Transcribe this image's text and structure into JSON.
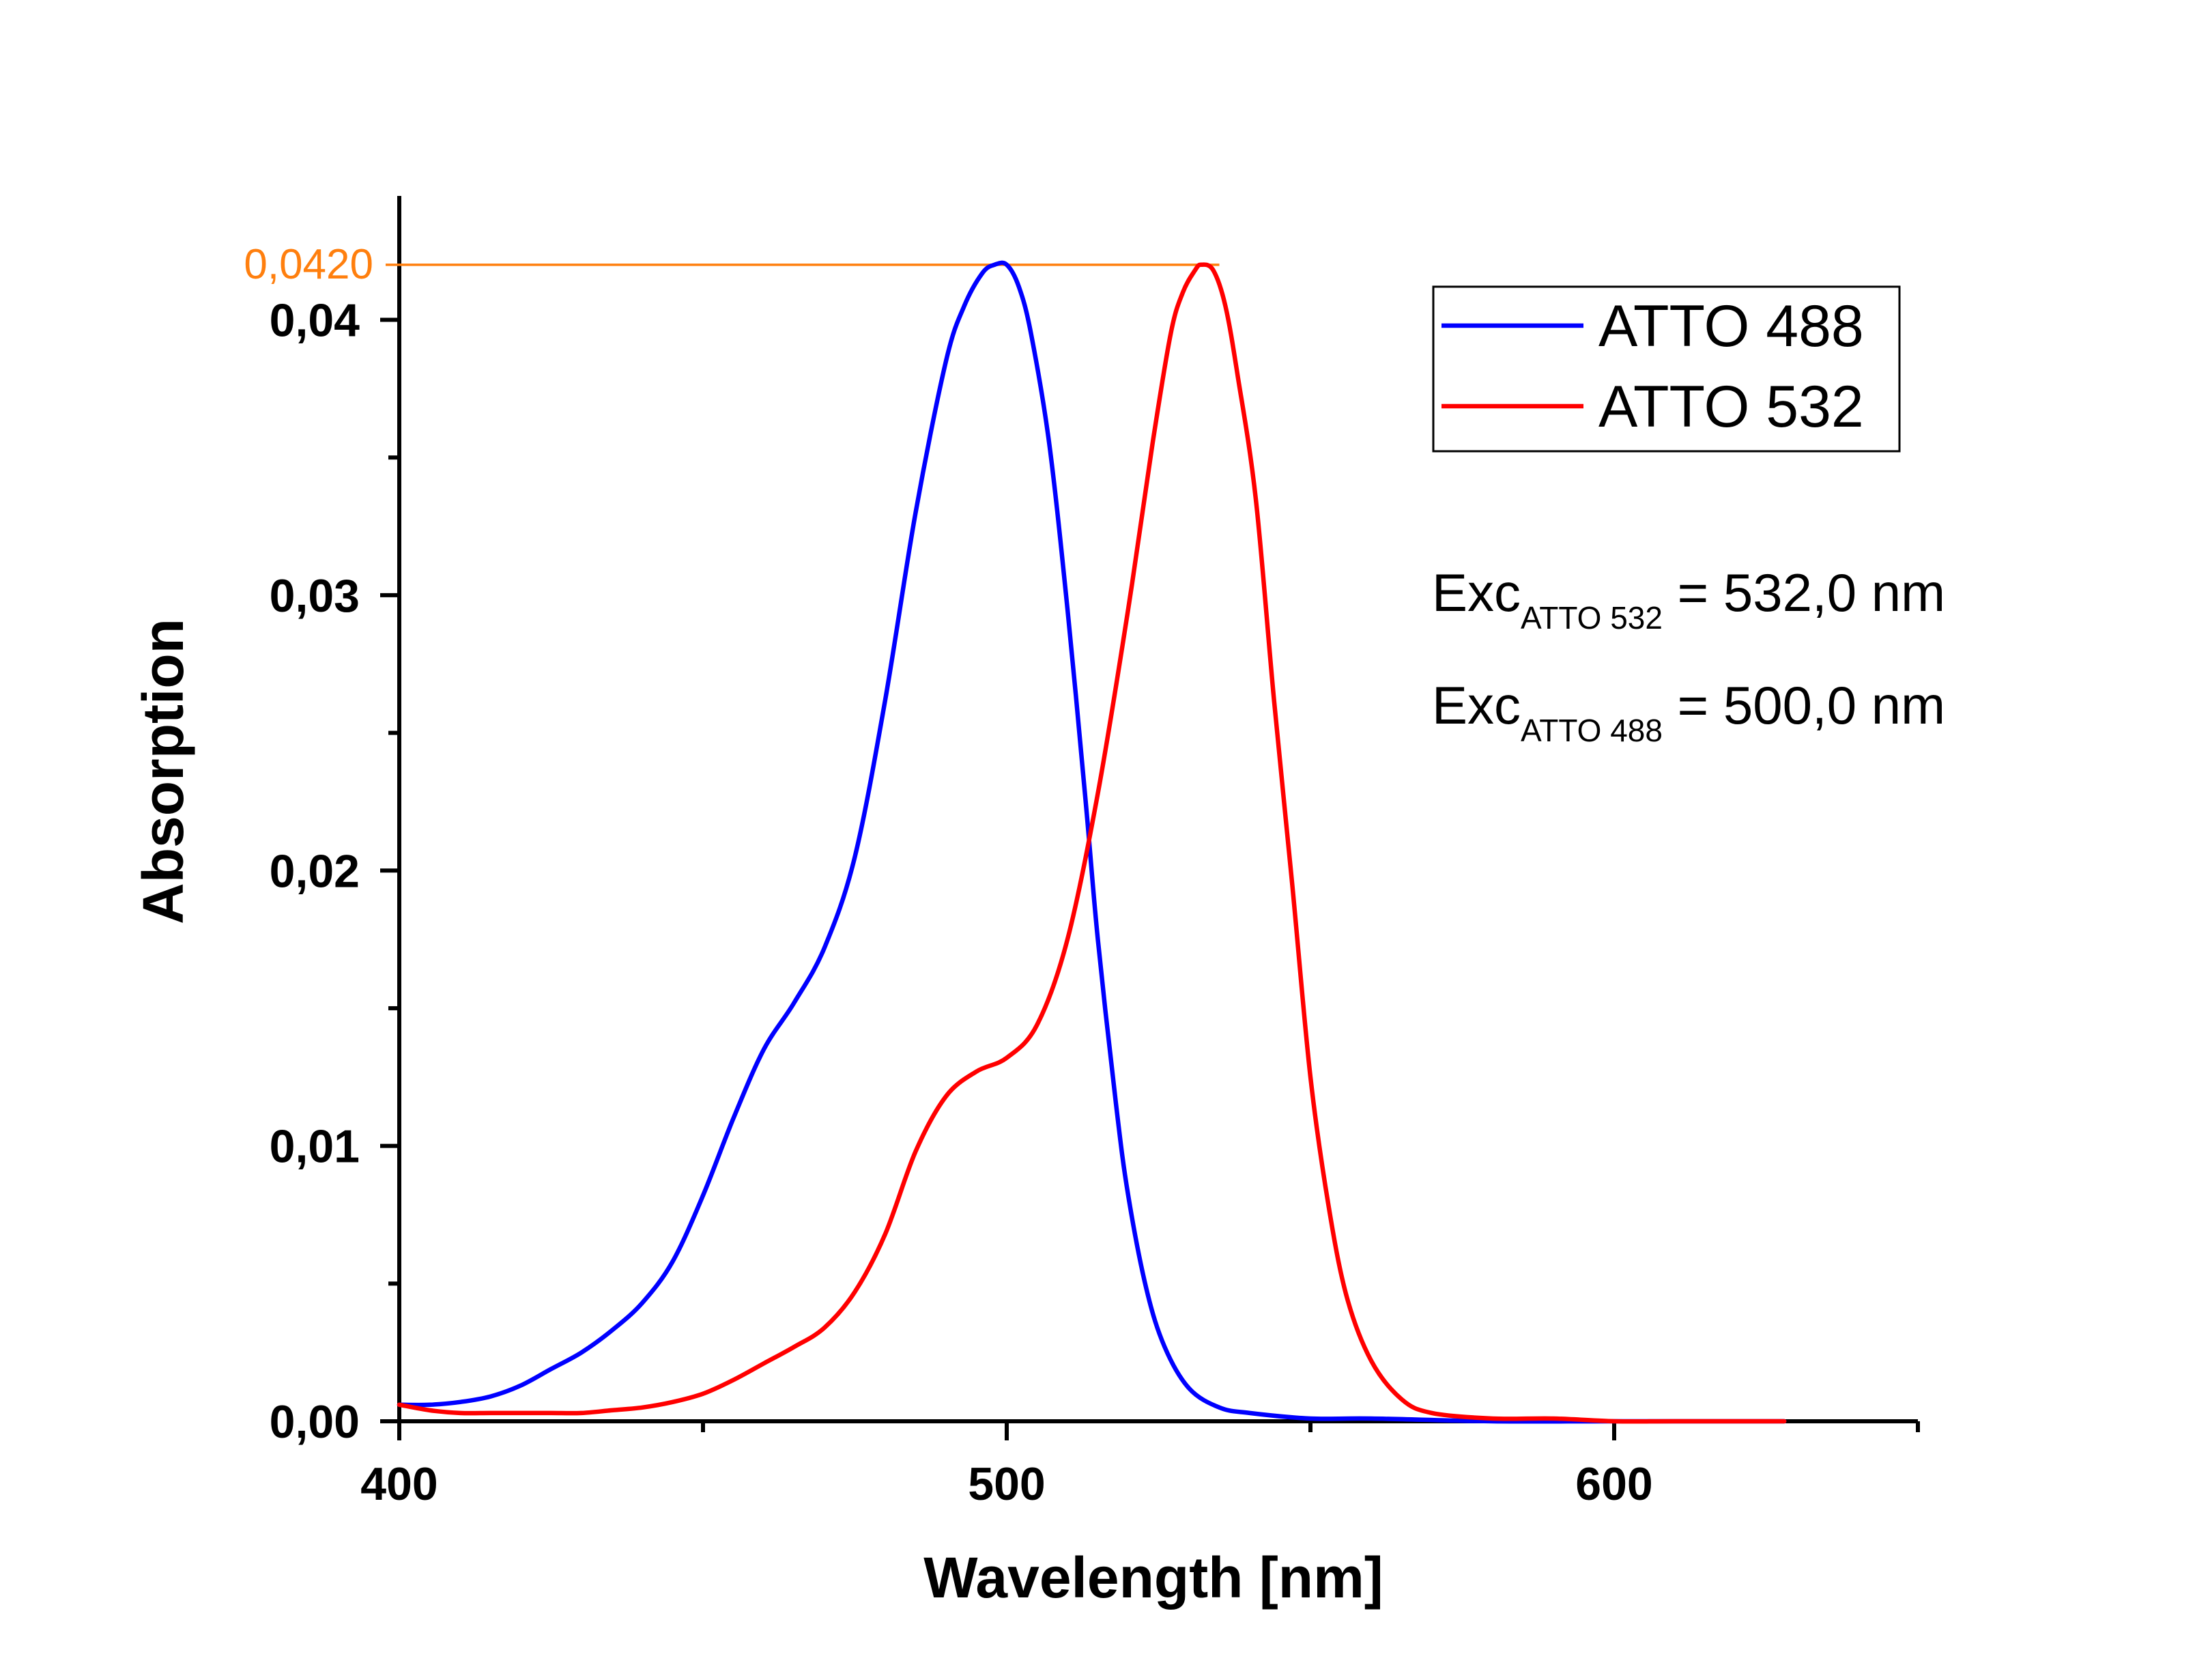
{
  "chart_data": {
    "type": "line",
    "title": "",
    "xlabel": "Wavelength [nm]",
    "ylabel": "Absorption",
    "xlim": [
      400,
      650
    ],
    "ylim": [
      0,
      0.0445
    ],
    "xticks": [
      400,
      500,
      600
    ],
    "xtick_labels": [
      "400",
      "500",
      "600"
    ],
    "x_minor_ticks": [
      450,
      550,
      650
    ],
    "yticks": [
      0,
      0.01,
      0.02,
      0.03,
      0.04
    ],
    "ytick_labels": [
      "0,00",
      "0,01",
      "0,02",
      "0,03",
      "0,04"
    ],
    "y_minor_ticks": [
      0.005,
      0.015,
      0.025,
      0.035
    ],
    "grid": false,
    "legend_position": "top-right",
    "series": [
      {
        "name": "ATTO 488",
        "color": "#0000ff",
        "x": [
          400,
          405,
          410,
          415,
          420,
          425,
          430,
          435,
          440,
          445,
          450,
          455,
          460,
          465,
          470,
          475,
          480,
          485,
          490,
          493,
          496,
          498,
          500,
          502,
          504,
          507,
          510,
          513,
          515,
          518,
          520,
          523,
          526,
          530,
          535,
          540,
          550,
          560,
          580,
          600,
          628
        ],
        "y": [
          0.0006,
          0.0006,
          0.0007,
          0.0009,
          0.0013,
          0.0019,
          0.0025,
          0.0033,
          0.0043,
          0.0058,
          0.0082,
          0.011,
          0.0135,
          0.0152,
          0.0172,
          0.0205,
          0.0262,
          0.033,
          0.0385,
          0.0405,
          0.0417,
          0.042,
          0.042,
          0.0412,
          0.0395,
          0.0355,
          0.0295,
          0.0225,
          0.0175,
          0.0115,
          0.0082,
          0.0048,
          0.0027,
          0.0012,
          0.0005,
          0.0003,
          0.0001,
          0.0001,
          0.0,
          0.0,
          0.0
        ]
      },
      {
        "name": "ATTO 532",
        "color": "#ff0000",
        "x": [
          400,
          405,
          410,
          415,
          420,
          425,
          430,
          435,
          440,
          445,
          450,
          455,
          460,
          465,
          470,
          475,
          480,
          485,
          490,
          495,
          500,
          505,
          510,
          515,
          520,
          524,
          527,
          529,
          531,
          532,
          534,
          536,
          538,
          541,
          544,
          547,
          550,
          553,
          556,
          560,
          565,
          570,
          580,
          590,
          600,
          610,
          628
        ],
        "y": [
          0.0006,
          0.0004,
          0.0003,
          0.0003,
          0.0003,
          0.0003,
          0.0003,
          0.0004,
          0.0005,
          0.0007,
          0.001,
          0.0015,
          0.0021,
          0.0027,
          0.0034,
          0.0047,
          0.0068,
          0.0098,
          0.0118,
          0.0127,
          0.0132,
          0.0144,
          0.0175,
          0.0228,
          0.0295,
          0.0355,
          0.0395,
          0.041,
          0.0418,
          0.042,
          0.0418,
          0.0405,
          0.038,
          0.0335,
          0.0262,
          0.0195,
          0.0125,
          0.0078,
          0.0045,
          0.0022,
          0.0008,
          0.0003,
          0.0001,
          0.0001,
          0.0,
          0.0,
          0.0
        ]
      }
    ],
    "annotations": [
      {
        "type": "hline",
        "label": "0,0420",
        "y": 0.042,
        "x_end": 535,
        "color": "#ff7f0e"
      }
    ]
  },
  "text_annotations": {
    "exc532_main": "Exc",
    "exc532_sub": "ATTO 532",
    "exc532_value": " = 532,0 nm",
    "exc488_main": "Exc",
    "exc488_sub": "ATTO 488",
    "exc488_value": " = 500,0 nm"
  }
}
